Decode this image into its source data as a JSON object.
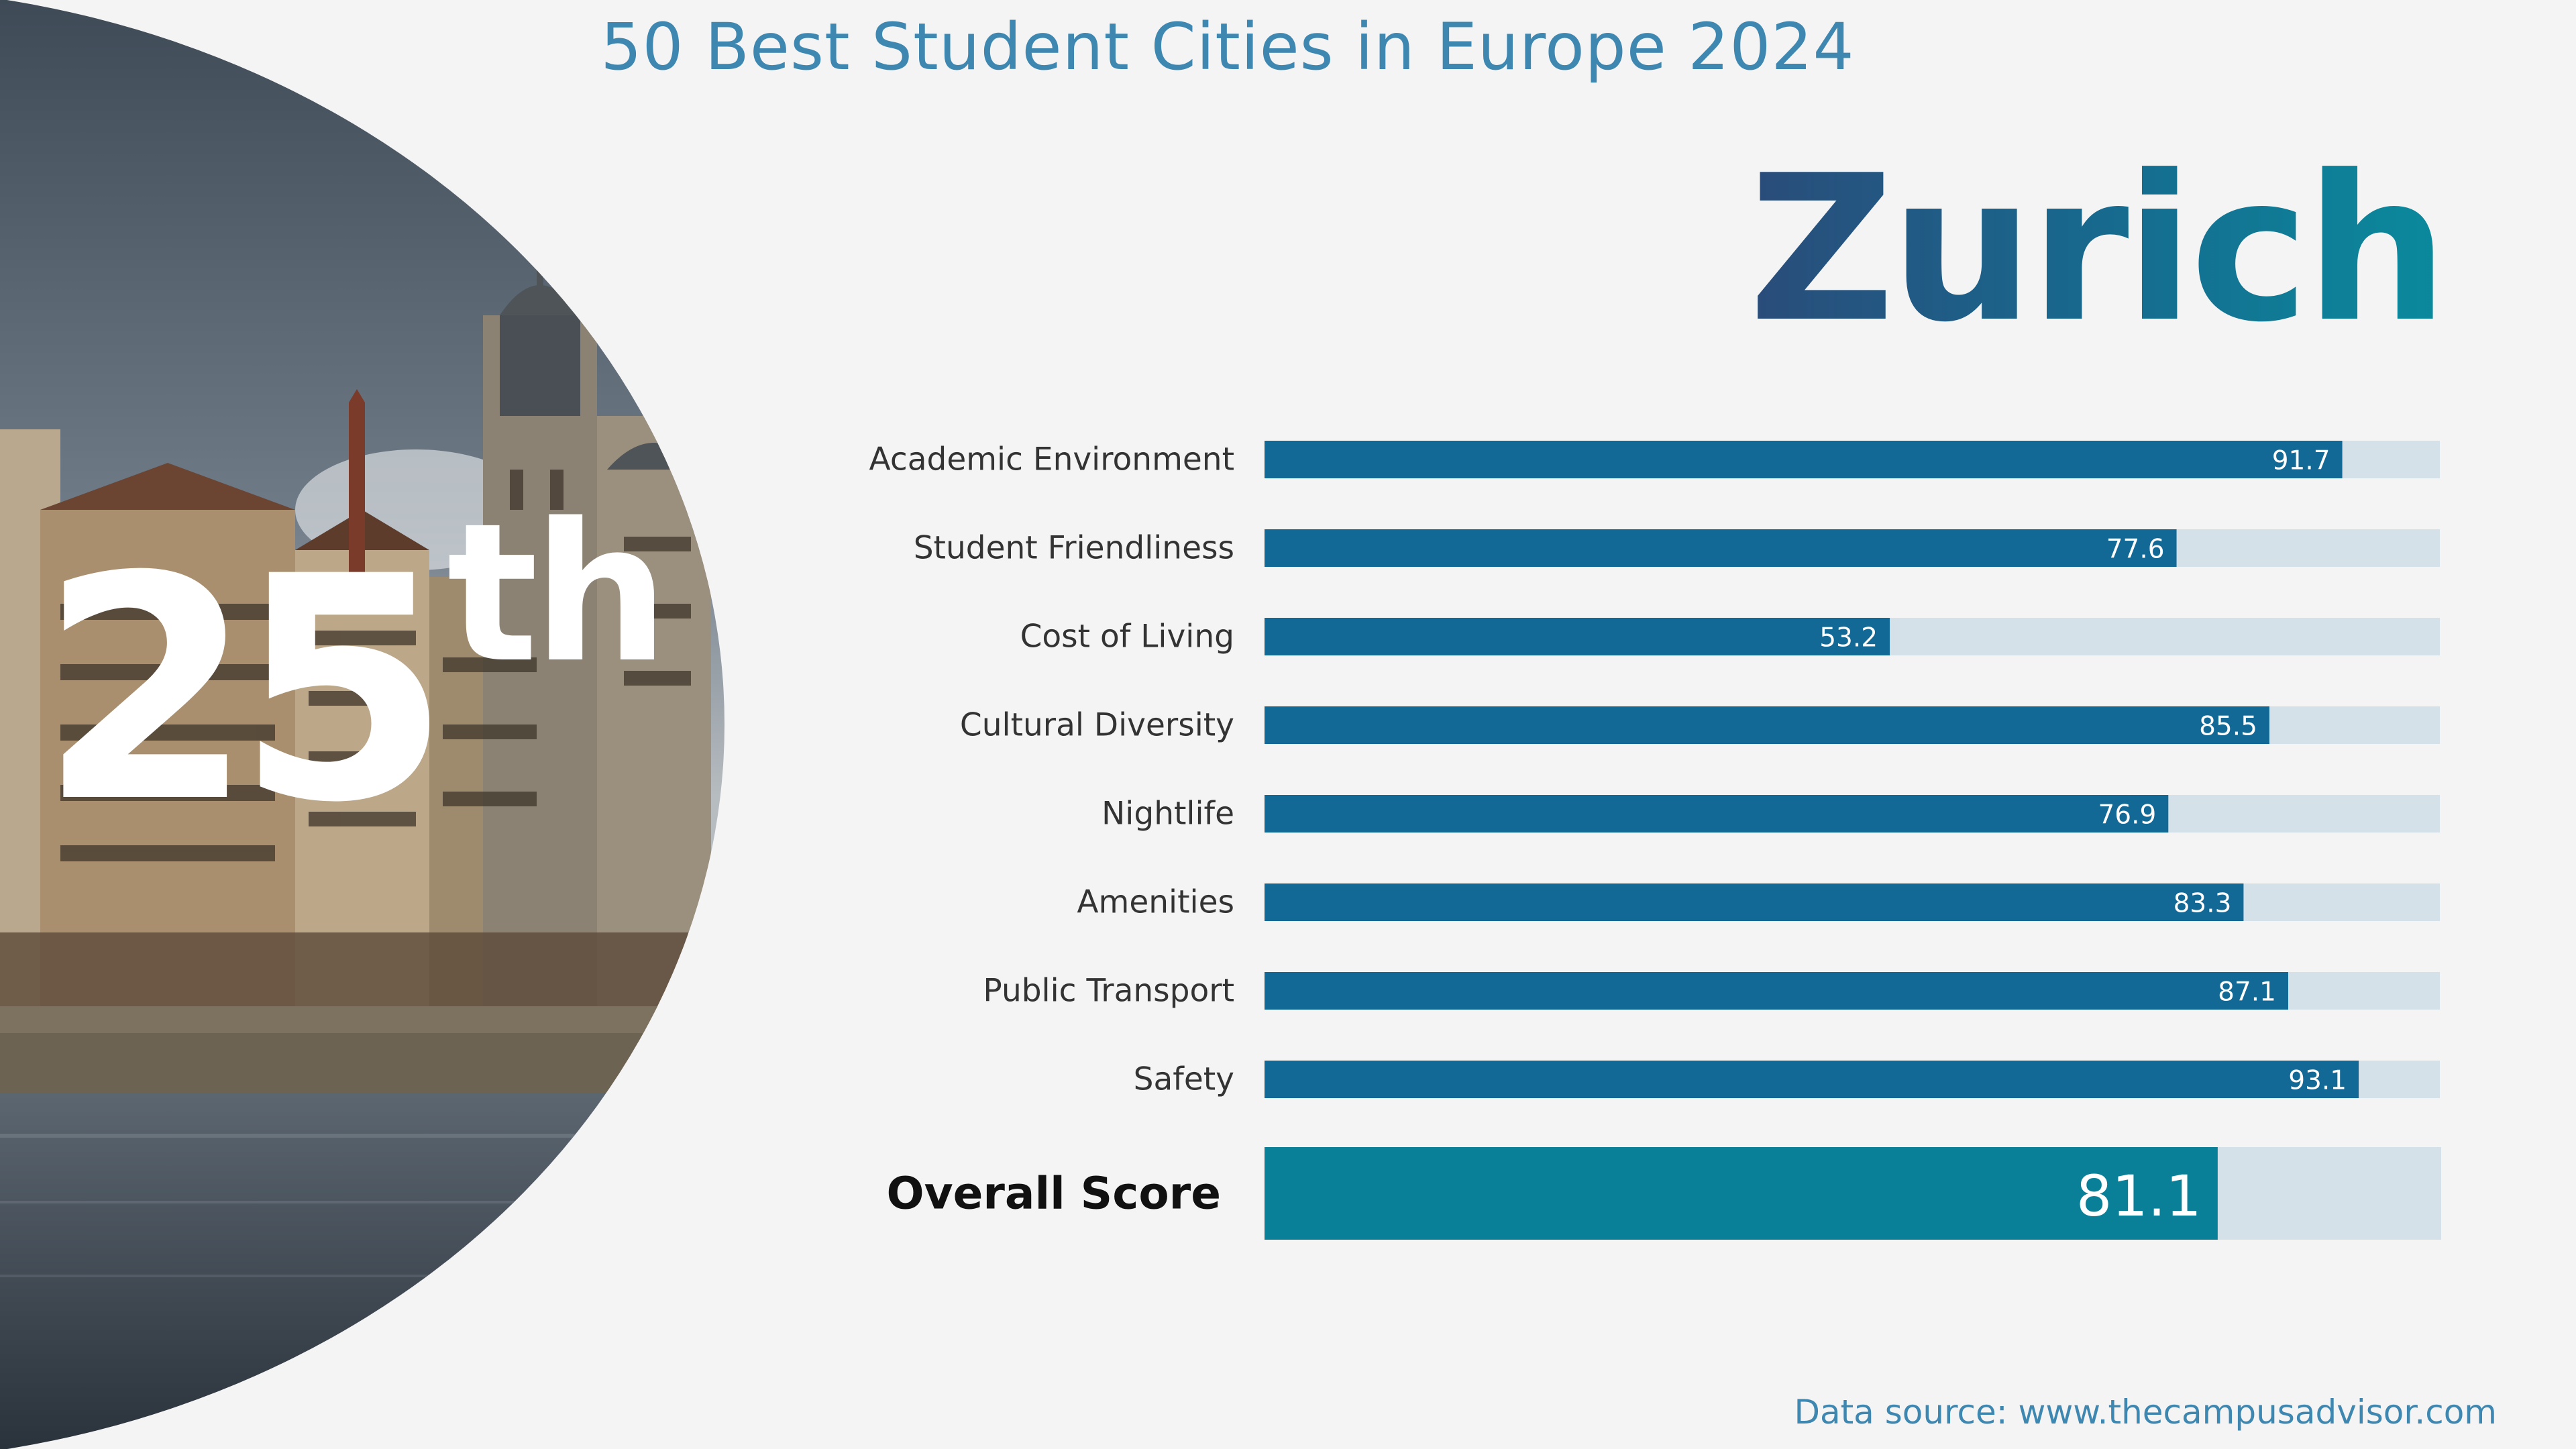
{
  "title": "50 Best Student Cities in Europe 2024",
  "city": "Zurich",
  "rank": {
    "number": "25",
    "suffix": "th"
  },
  "colors": {
    "bar": "#136996",
    "overall_bar": "#0a8098",
    "track": "#d4e1e9",
    "title": "#3e87b1",
    "background": "#f4f4f4"
  },
  "chart_data": {
    "type": "bar",
    "orientation": "horizontal",
    "categories": [
      "Academic Environment",
      "Student Friendliness",
      "Cost of Living",
      "Cultural Diversity",
      "Nightlife",
      "Amenities",
      "Public Transport",
      "Safety"
    ],
    "values": [
      91.7,
      77.6,
      53.2,
      85.5,
      76.9,
      83.3,
      87.1,
      93.1
    ],
    "xlim": [
      0,
      100
    ],
    "overall": {
      "label": "Overall Score",
      "value": 81.1
    }
  },
  "source": "Data source: www.thecampusadvisor.com"
}
